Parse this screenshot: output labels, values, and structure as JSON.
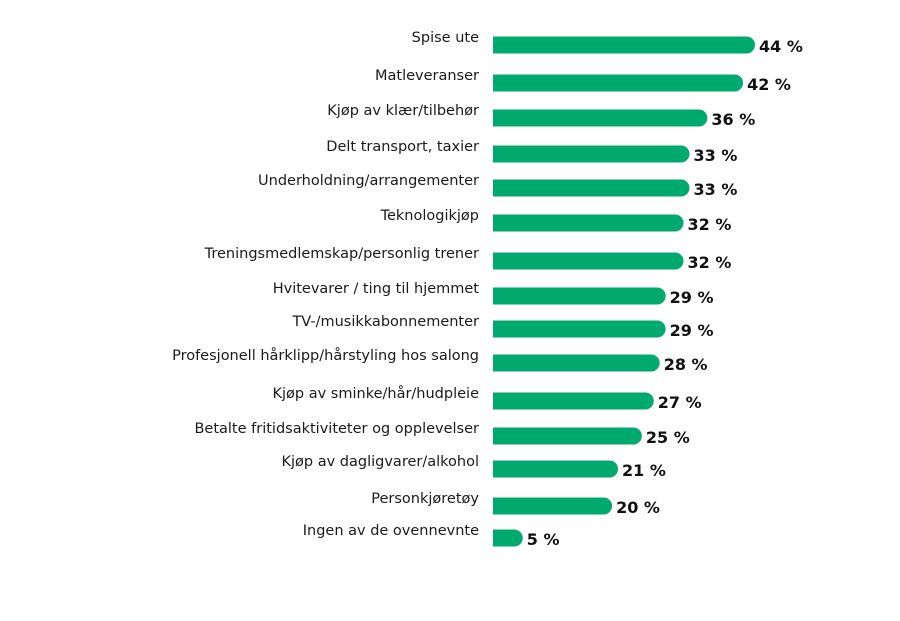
{
  "chart_data": {
    "type": "bar",
    "orientation": "horizontal",
    "bar_color": "#00A96E",
    "value_suffix": " %",
    "grid": false,
    "legend": "none",
    "xlim": [
      0,
      44
    ],
    "categories": [
      "Spise ute",
      "Matleveranser",
      "Kjøp av klær/tilbehør",
      "Delt transport, taxier",
      "Underholdning/arrangementer",
      "Teknologikjøp",
      "Treningsmedlemskap/personlig trener",
      "Hvitevarer / ting til hjemmet",
      "TV-/musikkabonnementer",
      "Profesjonell hårklipp/hårstyling hos salong",
      "Kjøp av sminke/hår/hudpleie",
      "Betalte fritidsaktiviteter og opplevelser",
      "Kjøp av dagligvarer/alkohol",
      "Personkjøretøy",
      "Ingen av de ovennevnte"
    ],
    "values": [
      44,
      42,
      36,
      33,
      33,
      32,
      32,
      29,
      29,
      28,
      27,
      25,
      21,
      20,
      5
    ]
  }
}
